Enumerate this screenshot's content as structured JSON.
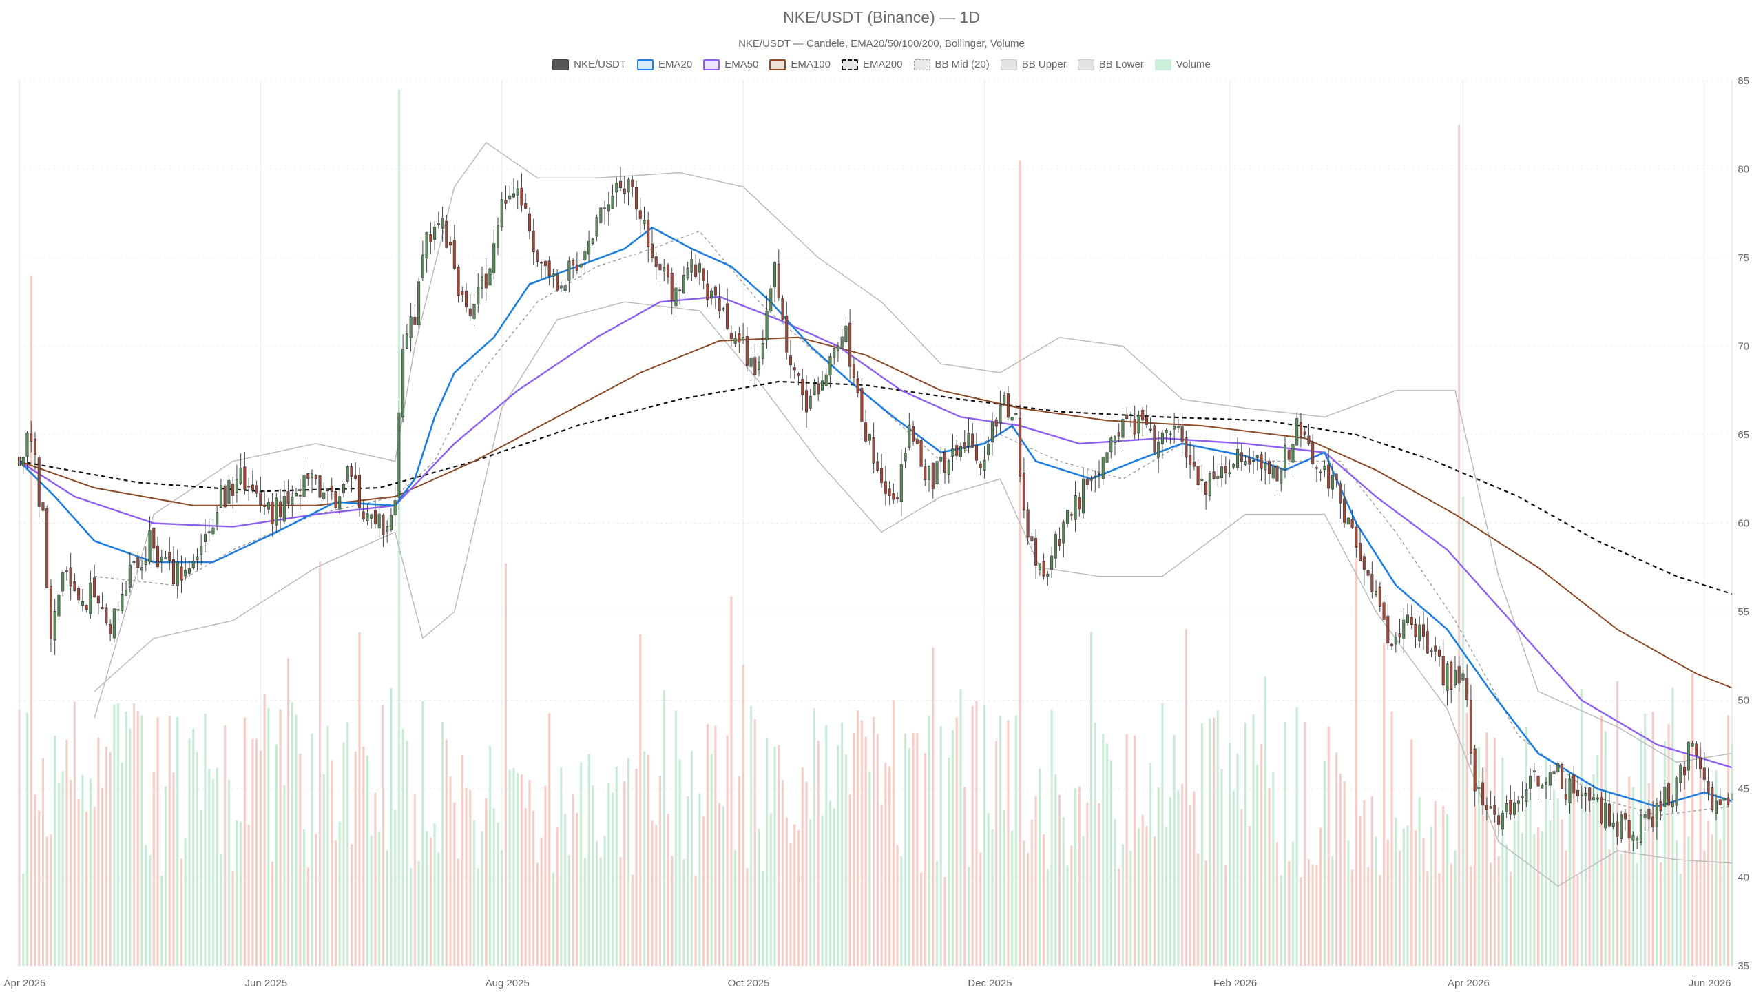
{
  "colors": {
    "up": "#5b8a5b",
    "down": "#a04a3c",
    "vol_up": "#bfe8cf",
    "vol_down": "#f5c4bd",
    "ema20": "#1f7fe0",
    "ema50": "#8f5ff0",
    "ema100": "#8b4a25",
    "ema200": "#111111",
    "bb": "#b8b8b8",
    "bb_mid": "#9a9a9a",
    "grid": "#ececec"
  },
  "chart_data": {
    "type": "candlestick",
    "title": "NKE/USDT (Binance) — 1D",
    "subtitle": "NKE/USDT — Candele, EMA20/50/100/200, Bollinger, Volume",
    "ylim": [
      35,
      85
    ],
    "yticks": [
      35,
      40,
      45,
      50,
      55,
      60,
      65,
      70,
      75,
      80,
      85
    ],
    "x_range": [
      "2025-04-01",
      "2026-06-08"
    ],
    "xticks": [
      {
        "date": "2025-04-01",
        "label": "Apr 2025"
      },
      {
        "date": "2025-06-01",
        "label": "Jun 2025"
      },
      {
        "date": "2025-08-01",
        "label": "Aug 2025"
      },
      {
        "date": "2025-10-01",
        "label": "Oct 2025"
      },
      {
        "date": "2025-12-01",
        "label": "Dec 2025"
      },
      {
        "date": "2026-02-01",
        "label": "Feb 2026"
      },
      {
        "date": "2026-04-01",
        "label": "Apr 2026"
      },
      {
        "date": "2026-06-01",
        "label": "Jun 2026"
      }
    ],
    "grid": true,
    "legend": {
      "position": "top-center",
      "items": [
        {
          "label": "NKE/USDT",
          "key": "candles"
        },
        {
          "label": "EMA20",
          "key": "ema20"
        },
        {
          "label": "EMA50",
          "key": "ema50"
        },
        {
          "label": "EMA100",
          "key": "ema100"
        },
        {
          "label": "EMA200",
          "key": "ema200"
        },
        {
          "label": "BB Mid (20)",
          "key": "bb_mid"
        },
        {
          "label": "BB Upper",
          "key": "bb_upper"
        },
        {
          "label": "BB Lower",
          "key": "bb_lower"
        },
        {
          "label": "Volume",
          "key": "volume"
        }
      ]
    },
    "close_path": [
      [
        "2025-04-01",
        63.5
      ],
      [
        "2025-04-04",
        64.8
      ],
      [
        "2025-04-07",
        60.0
      ],
      [
        "2025-04-09",
        54.0
      ],
      [
        "2025-04-12",
        57.5
      ],
      [
        "2025-04-15",
        55.5
      ],
      [
        "2025-04-19",
        56.0
      ],
      [
        "2025-04-24",
        54.0
      ],
      [
        "2025-04-30",
        57.5
      ],
      [
        "2025-05-04",
        59.0
      ],
      [
        "2025-05-10",
        56.8
      ],
      [
        "2025-05-16",
        58.5
      ],
      [
        "2025-05-22",
        61.5
      ],
      [
        "2025-05-28",
        62.5
      ],
      [
        "2025-06-03",
        60.5
      ],
      [
        "2025-06-09",
        61.5
      ],
      [
        "2025-06-14",
        62.8
      ],
      [
        "2025-06-19",
        61.0
      ],
      [
        "2025-06-23",
        63.5
      ],
      [
        "2025-06-27",
        61.0
      ],
      [
        "2025-07-02",
        60.0
      ],
      [
        "2025-07-05",
        61.5
      ],
      [
        "2025-07-07",
        70.0
      ],
      [
        "2025-07-10",
        72.0
      ],
      [
        "2025-07-13",
        76.5
      ],
      [
        "2025-07-17",
        77.0
      ],
      [
        "2025-07-20",
        74.0
      ],
      [
        "2025-07-24",
        72.5
      ],
      [
        "2025-07-28",
        74.0
      ],
      [
        "2025-08-01",
        78.0
      ],
      [
        "2025-08-05",
        79.5
      ],
      [
        "2025-08-09",
        75.5
      ],
      [
        "2025-08-14",
        73.5
      ],
      [
        "2025-08-19",
        74.5
      ],
      [
        "2025-08-24",
        76.5
      ],
      [
        "2025-08-29",
        78.5
      ],
      [
        "2025-09-02",
        79.5
      ],
      [
        "2025-09-05",
        77.5
      ],
      [
        "2025-09-09",
        75.0
      ],
      [
        "2025-09-13",
        73.0
      ],
      [
        "2025-09-18",
        74.5
      ],
      [
        "2025-09-23",
        73.0
      ],
      [
        "2025-09-27",
        71.0
      ],
      [
        "2025-10-01",
        70.0
      ],
      [
        "2025-10-05",
        68.5
      ],
      [
        "2025-10-09",
        74.0
      ],
      [
        "2025-10-13",
        69.0
      ],
      [
        "2025-10-17",
        66.5
      ],
      [
        "2025-10-22",
        68.5
      ],
      [
        "2025-10-27",
        70.5
      ],
      [
        "2025-10-31",
        66.0
      ],
      [
        "2025-11-04",
        62.5
      ],
      [
        "2025-11-08",
        61.0
      ],
      [
        "2025-11-12",
        65.5
      ],
      [
        "2025-11-17",
        62.5
      ],
      [
        "2025-11-22",
        63.5
      ],
      [
        "2025-11-27",
        64.5
      ],
      [
        "2025-12-01",
        63.5
      ],
      [
        "2025-12-05",
        67.0
      ],
      [
        "2025-12-09",
        65.5
      ],
      [
        "2025-12-12",
        59.0
      ],
      [
        "2025-12-16",
        57.0
      ],
      [
        "2025-12-20",
        59.5
      ],
      [
        "2025-12-25",
        61.5
      ],
      [
        "2025-12-30",
        63.0
      ],
      [
        "2026-01-04",
        65.0
      ],
      [
        "2026-01-09",
        66.0
      ],
      [
        "2026-01-14",
        64.5
      ],
      [
        "2026-01-19",
        65.5
      ],
      [
        "2026-01-24",
        62.5
      ],
      [
        "2026-01-29",
        62.0
      ],
      [
        "2026-02-03",
        64.0
      ],
      [
        "2026-02-08",
        63.5
      ],
      [
        "2026-02-13",
        62.5
      ],
      [
        "2026-02-18",
        65.5
      ],
      [
        "2026-02-23",
        63.5
      ],
      [
        "2026-02-28",
        62.0
      ],
      [
        "2026-03-04",
        59.0
      ],
      [
        "2026-03-09",
        56.0
      ],
      [
        "2026-03-14",
        53.5
      ],
      [
        "2026-03-19",
        54.5
      ],
      [
        "2026-03-24",
        52.5
      ],
      [
        "2026-03-29",
        51.0
      ],
      [
        "2026-04-01",
        52.0
      ],
      [
        "2026-04-04",
        45.0
      ],
      [
        "2026-04-09",
        43.0
      ],
      [
        "2026-04-14",
        44.0
      ],
      [
        "2026-04-19",
        45.5
      ],
      [
        "2026-04-24",
        46.0
      ],
      [
        "2026-04-29",
        44.5
      ],
      [
        "2026-05-04",
        44.0
      ],
      [
        "2026-05-09",
        43.0
      ],
      [
        "2026-05-14",
        42.5
      ],
      [
        "2026-05-19",
        43.5
      ],
      [
        "2026-05-24",
        45.0
      ],
      [
        "2026-05-29",
        47.5
      ],
      [
        "2026-06-02",
        45.0
      ],
      [
        "2026-06-05",
        43.5
      ],
      [
        "2026-06-08",
        44.5
      ]
    ],
    "ema20": [
      [
        "2025-04-01",
        63.5
      ],
      [
        "2025-04-10",
        61.5
      ],
      [
        "2025-04-20",
        59.0
      ],
      [
        "2025-05-05",
        57.8
      ],
      [
        "2025-05-20",
        57.8
      ],
      [
        "2025-06-05",
        59.5
      ],
      [
        "2025-06-20",
        61.2
      ],
      [
        "2025-07-05",
        61.0
      ],
      [
        "2025-07-10",
        62.5
      ],
      [
        "2025-07-15",
        66.0
      ],
      [
        "2025-07-20",
        68.5
      ],
      [
        "2025-07-30",
        70.5
      ],
      [
        "2025-08-08",
        73.5
      ],
      [
        "2025-08-20",
        74.5
      ],
      [
        "2025-09-01",
        75.5
      ],
      [
        "2025-09-08",
        76.7
      ],
      [
        "2025-09-18",
        75.5
      ],
      [
        "2025-09-28",
        74.5
      ],
      [
        "2025-10-08",
        72.5
      ],
      [
        "2025-10-18",
        70.0
      ],
      [
        "2025-10-28",
        68.0
      ],
      [
        "2025-11-08",
        66.0
      ],
      [
        "2025-11-20",
        64.0
      ],
      [
        "2025-12-01",
        64.5
      ],
      [
        "2025-12-08",
        65.5
      ],
      [
        "2025-12-14",
        63.5
      ],
      [
        "2025-12-28",
        62.5
      ],
      [
        "2026-01-08",
        63.5
      ],
      [
        "2026-01-20",
        64.5
      ],
      [
        "2026-02-05",
        63.8
      ],
      [
        "2026-02-15",
        63.0
      ],
      [
        "2026-02-25",
        64.0
      ],
      [
        "2026-03-05",
        60.0
      ],
      [
        "2026-03-15",
        56.5
      ],
      [
        "2026-03-28",
        54.0
      ],
      [
        "2026-04-08",
        50.5
      ],
      [
        "2026-04-20",
        47.0
      ],
      [
        "2026-05-05",
        45.0
      ],
      [
        "2026-05-20",
        44.0
      ],
      [
        "2026-06-01",
        44.8
      ],
      [
        "2026-06-08",
        44.3
      ]
    ],
    "ema50": [
      [
        "2025-04-01",
        63.5
      ],
      [
        "2025-04-15",
        61.5
      ],
      [
        "2025-05-05",
        60.0
      ],
      [
        "2025-05-25",
        59.8
      ],
      [
        "2025-06-15",
        60.5
      ],
      [
        "2025-07-05",
        61.0
      ],
      [
        "2025-07-20",
        64.5
      ],
      [
        "2025-08-05",
        67.5
      ],
      [
        "2025-08-25",
        70.5
      ],
      [
        "2025-09-10",
        72.5
      ],
      [
        "2025-09-25",
        72.8
      ],
      [
        "2025-10-10",
        71.5
      ],
      [
        "2025-10-25",
        70.0
      ],
      [
        "2025-11-10",
        67.5
      ],
      [
        "2025-11-25",
        66.0
      ],
      [
        "2025-12-10",
        65.5
      ],
      [
        "2025-12-25",
        64.5
      ],
      [
        "2026-01-15",
        64.8
      ],
      [
        "2026-02-05",
        64.5
      ],
      [
        "2026-02-25",
        64.0
      ],
      [
        "2026-03-10",
        61.5
      ],
      [
        "2026-03-28",
        58.5
      ],
      [
        "2026-04-15",
        54.0
      ],
      [
        "2026-05-01",
        50.0
      ],
      [
        "2026-05-20",
        47.5
      ],
      [
        "2026-06-08",
        46.2
      ]
    ],
    "ema100": [
      [
        "2025-04-01",
        63.5
      ],
      [
        "2025-04-20",
        62.0
      ],
      [
        "2025-05-15",
        61.0
      ],
      [
        "2025-06-15",
        61.0
      ],
      [
        "2025-07-05",
        61.5
      ],
      [
        "2025-07-25",
        63.5
      ],
      [
        "2025-08-15",
        66.0
      ],
      [
        "2025-09-05",
        68.5
      ],
      [
        "2025-09-25",
        70.3
      ],
      [
        "2025-10-15",
        70.5
      ],
      [
        "2025-11-01",
        69.5
      ],
      [
        "2025-11-20",
        67.5
      ],
      [
        "2025-12-10",
        66.5
      ],
      [
        "2026-01-01",
        65.8
      ],
      [
        "2026-01-25",
        65.5
      ],
      [
        "2026-02-20",
        64.8
      ],
      [
        "2026-03-10",
        63.0
      ],
      [
        "2026-03-30",
        60.5
      ],
      [
        "2026-04-20",
        57.5
      ],
      [
        "2026-05-10",
        54.0
      ],
      [
        "2026-05-30",
        51.5
      ],
      [
        "2026-06-08",
        50.7
      ]
    ],
    "ema200": [
      [
        "2025-04-01",
        63.5
      ],
      [
        "2025-05-01",
        62.3
      ],
      [
        "2025-06-01",
        61.8
      ],
      [
        "2025-07-01",
        62.0
      ],
      [
        "2025-07-25",
        63.5
      ],
      [
        "2025-08-20",
        65.5
      ],
      [
        "2025-09-15",
        67.0
      ],
      [
        "2025-10-10",
        68.0
      ],
      [
        "2025-11-01",
        67.8
      ],
      [
        "2025-11-25",
        67.0
      ],
      [
        "2025-12-20",
        66.3
      ],
      [
        "2026-01-15",
        66.0
      ],
      [
        "2026-02-10",
        65.8
      ],
      [
        "2026-03-05",
        65.0
      ],
      [
        "2026-03-25",
        63.5
      ],
      [
        "2026-04-15",
        61.5
      ],
      [
        "2026-05-05",
        59.0
      ],
      [
        "2026-05-25",
        57.0
      ],
      [
        "2026-06-08",
        56.0
      ]
    ],
    "bb_mid": [
      [
        "2025-04-20",
        57.0
      ],
      [
        "2025-05-10",
        56.5
      ],
      [
        "2025-05-25",
        58.5
      ],
      [
        "2025-06-15",
        60.5
      ],
      [
        "2025-07-05",
        61.5
      ],
      [
        "2025-07-15",
        63.5
      ],
      [
        "2025-07-25",
        68.0
      ],
      [
        "2025-08-10",
        72.5
      ],
      [
        "2025-08-25",
        74.5
      ],
      [
        "2025-09-08",
        75.5
      ],
      [
        "2025-09-20",
        76.5
      ],
      [
        "2025-10-05",
        72.5
      ],
      [
        "2025-10-20",
        69.5
      ],
      [
        "2025-11-05",
        66.5
      ],
      [
        "2025-11-20",
        63.5
      ],
      [
        "2025-12-05",
        65.0
      ],
      [
        "2025-12-20",
        63.5
      ],
      [
        "2026-01-05",
        62.5
      ],
      [
        "2026-01-20",
        64.5
      ],
      [
        "2026-02-10",
        63.5
      ],
      [
        "2026-03-01",
        63.5
      ],
      [
        "2026-03-15",
        59.5
      ],
      [
        "2026-03-30",
        54.5
      ],
      [
        "2026-04-15",
        48.0
      ],
      [
        "2026-05-05",
        44.5
      ],
      [
        "2026-05-20",
        43.5
      ],
      [
        "2026-06-08",
        44.0
      ]
    ],
    "bb_upper": [
      [
        "2025-04-20",
        49.0
      ],
      [
        "2025-05-05",
        60.5
      ],
      [
        "2025-05-25",
        63.5
      ],
      [
        "2025-06-15",
        64.5
      ],
      [
        "2025-07-05",
        63.5
      ],
      [
        "2025-07-10",
        70.0
      ],
      [
        "2025-07-20",
        79.0
      ],
      [
        "2025-07-28",
        81.5
      ],
      [
        "2025-08-10",
        79.5
      ],
      [
        "2025-08-25",
        79.5
      ],
      [
        "2025-09-15",
        79.8
      ],
      [
        "2025-10-01",
        79.0
      ],
      [
        "2025-10-20",
        75.0
      ],
      [
        "2025-11-05",
        72.5
      ],
      [
        "2025-11-20",
        69.0
      ],
      [
        "2025-12-05",
        68.5
      ],
      [
        "2025-12-20",
        70.5
      ],
      [
        "2026-01-05",
        70.0
      ],
      [
        "2026-01-20",
        67.0
      ],
      [
        "2026-02-05",
        66.5
      ],
      [
        "2026-02-25",
        66.0
      ],
      [
        "2026-03-15",
        67.5
      ],
      [
        "2026-03-30",
        67.5
      ],
      [
        "2026-04-10",
        57.0
      ],
      [
        "2026-04-20",
        50.5
      ],
      [
        "2026-05-10",
        48.5
      ],
      [
        "2026-05-25",
        46.5
      ],
      [
        "2026-06-08",
        47.0
      ]
    ],
    "bb_lower": [
      [
        "2025-04-20",
        50.5
      ],
      [
        "2025-05-05",
        53.5
      ],
      [
        "2025-05-25",
        54.5
      ],
      [
        "2025-06-15",
        57.5
      ],
      [
        "2025-07-05",
        59.5
      ],
      [
        "2025-07-12",
        53.5
      ],
      [
        "2025-07-20",
        55.0
      ],
      [
        "2025-08-01",
        66.5
      ],
      [
        "2025-08-15",
        71.5
      ],
      [
        "2025-09-01",
        72.5
      ],
      [
        "2025-09-20",
        72.0
      ],
      [
        "2025-10-05",
        68.0
      ],
      [
        "2025-10-20",
        63.5
      ],
      [
        "2025-11-05",
        59.5
      ],
      [
        "2025-11-20",
        61.5
      ],
      [
        "2025-12-05",
        62.5
      ],
      [
        "2025-12-15",
        57.5
      ],
      [
        "2025-12-30",
        57.0
      ],
      [
        "2026-01-15",
        57.0
      ],
      [
        "2026-02-05",
        60.5
      ],
      [
        "2026-02-25",
        60.5
      ],
      [
        "2026-03-10",
        55.0
      ],
      [
        "2026-03-28",
        49.5
      ],
      [
        "2026-04-10",
        42.0
      ],
      [
        "2026-04-25",
        39.5
      ],
      [
        "2026-05-10",
        41.5
      ],
      [
        "2026-05-25",
        41.0
      ],
      [
        "2026-06-08",
        40.8
      ]
    ],
    "volume_spikes": [
      {
        "date": "2025-04-04",
        "level": 0.78,
        "dir": "down"
      },
      {
        "date": "2025-07-06",
        "level": 0.99,
        "dir": "up"
      },
      {
        "date": "2025-10-01",
        "level": 0.34,
        "dir": "down"
      },
      {
        "date": "2025-12-10",
        "level": 0.91,
        "dir": "down"
      },
      {
        "date": "2026-03-31",
        "level": 0.95,
        "dir": "down"
      },
      {
        "date": "2026-04-01",
        "level": 0.53,
        "dir": "up"
      },
      {
        "date": "2026-05-29",
        "level": 0.33,
        "dir": "down"
      }
    ]
  }
}
